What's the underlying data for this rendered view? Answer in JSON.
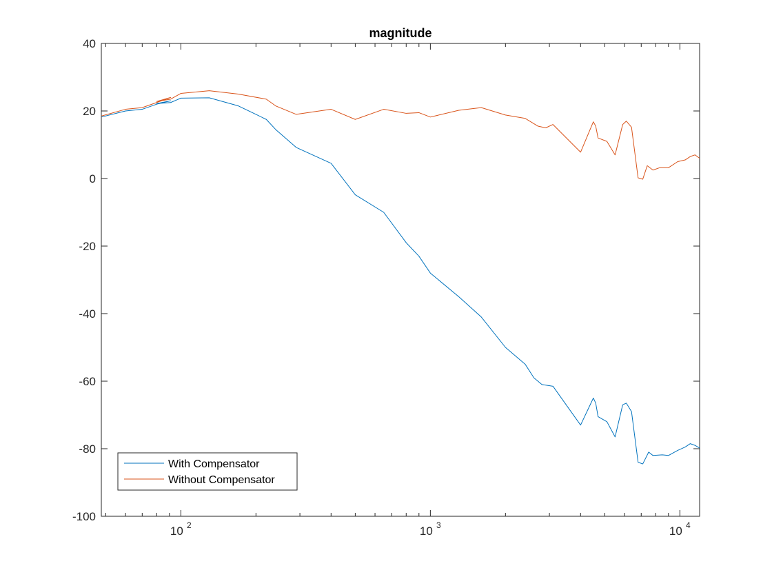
{
  "chart_data": {
    "type": "line",
    "title": "magnitude",
    "xlabel": "",
    "ylabel": "",
    "xscale": "log",
    "xlim": [
      48,
      12000
    ],
    "ylim": [
      -100,
      40
    ],
    "grid": false,
    "legend_position": "bottom-left",
    "yticks": [
      {
        "value": 40,
        "label": "40"
      },
      {
        "value": 20,
        "label": "20"
      },
      {
        "value": 0,
        "label": "0"
      },
      {
        "value": -20,
        "label": "-20"
      },
      {
        "value": -40,
        "label": "-40"
      },
      {
        "value": -60,
        "label": "-60"
      },
      {
        "value": -80,
        "label": "-80"
      },
      {
        "value": -100,
        "label": "-100"
      }
    ],
    "xticks": [
      {
        "value": 100,
        "base": "10",
        "exp": "2"
      },
      {
        "value": 1000,
        "base": "10",
        "exp": "3"
      },
      {
        "value": 10000,
        "base": "10",
        "exp": "4"
      }
    ],
    "series": [
      {
        "name": "With Compensator",
        "color": "#0072BD",
        "points": [
          [
            48,
            18.2
          ],
          [
            60,
            20.0
          ],
          [
            70,
            20.5
          ],
          [
            80,
            22.0
          ],
          [
            91,
            23.0
          ],
          [
            80,
            22.2
          ],
          [
            91,
            22.5
          ],
          [
            100,
            23.8
          ],
          [
            130,
            23.9
          ],
          [
            170,
            21.5
          ],
          [
            200,
            19.0
          ],
          [
            220,
            17.5
          ],
          [
            240,
            14.5
          ],
          [
            290,
            9.2
          ],
          [
            400,
            4.5
          ],
          [
            500,
            -4.8
          ],
          [
            650,
            -10.0
          ],
          [
            800,
            -19.0
          ],
          [
            900,
            -23.0
          ],
          [
            1000,
            -28.0
          ],
          [
            1300,
            -35.0
          ],
          [
            1600,
            -41.0
          ],
          [
            2000,
            -50.0
          ],
          [
            2400,
            -55.0
          ],
          [
            2600,
            -59.0
          ],
          [
            2800,
            -61.0
          ],
          [
            3100,
            -61.5
          ],
          [
            4000,
            -73.0
          ],
          [
            4500,
            -65.0
          ],
          [
            4600,
            -66.5
          ],
          [
            4700,
            -70.5
          ],
          [
            5100,
            -72.0
          ],
          [
            5500,
            -76.5
          ],
          [
            5900,
            -67.0
          ],
          [
            6100,
            -66.5
          ],
          [
            6400,
            -69.0
          ],
          [
            6800,
            -84.0
          ],
          [
            7100,
            -84.5
          ],
          [
            7500,
            -81.0
          ],
          [
            7800,
            -82.0
          ],
          [
            8500,
            -81.8
          ],
          [
            9000,
            -82.0
          ],
          [
            9800,
            -80.5
          ],
          [
            10500,
            -79.5
          ],
          [
            11000,
            -78.5
          ],
          [
            11500,
            -79.0
          ],
          [
            12000,
            -79.8
          ]
        ]
      },
      {
        "name": "Without Compensator",
        "color": "#D95319",
        "points": [
          [
            48,
            18.5
          ],
          [
            60,
            20.5
          ],
          [
            70,
            21.0
          ],
          [
            80,
            22.5
          ],
          [
            91,
            24.0
          ],
          [
            80,
            22.8
          ],
          [
            91,
            23.5
          ],
          [
            100,
            25.2
          ],
          [
            130,
            26.0
          ],
          [
            170,
            25.0
          ],
          [
            220,
            23.5
          ],
          [
            240,
            21.5
          ],
          [
            290,
            19.0
          ],
          [
            400,
            20.5
          ],
          [
            500,
            17.5
          ],
          [
            650,
            20.5
          ],
          [
            800,
            19.3
          ],
          [
            900,
            19.5
          ],
          [
            1000,
            18.2
          ],
          [
            1300,
            20.2
          ],
          [
            1600,
            21.0
          ],
          [
            2000,
            18.8
          ],
          [
            2400,
            17.8
          ],
          [
            2700,
            15.5
          ],
          [
            2900,
            15.0
          ],
          [
            3100,
            16.0
          ],
          [
            4000,
            7.8
          ],
          [
            4500,
            16.8
          ],
          [
            4600,
            15.5
          ],
          [
            4700,
            12.0
          ],
          [
            5100,
            11.0
          ],
          [
            5500,
            7.0
          ],
          [
            5900,
            16.0
          ],
          [
            6100,
            17.0
          ],
          [
            6400,
            15.2
          ],
          [
            6800,
            0.2
          ],
          [
            7100,
            -0.2
          ],
          [
            7400,
            3.8
          ],
          [
            7800,
            2.5
          ],
          [
            8300,
            3.2
          ],
          [
            9000,
            3.2
          ],
          [
            9800,
            5.0
          ],
          [
            10500,
            5.5
          ],
          [
            11000,
            6.5
          ],
          [
            11500,
            7.0
          ],
          [
            12000,
            6.0
          ]
        ]
      }
    ]
  }
}
